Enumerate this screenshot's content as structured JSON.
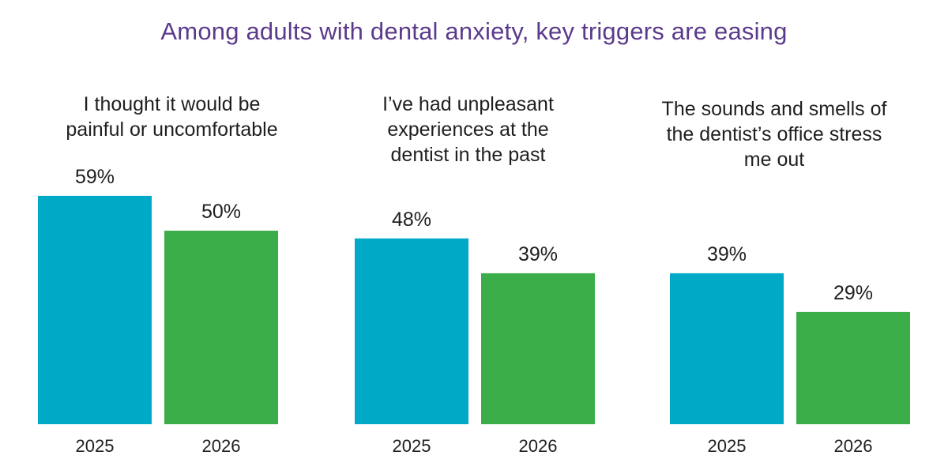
{
  "title": "Among adults with dental anxiety, key triggers are easing",
  "colors": {
    "title": "#5b3a8c",
    "2025": "#00a9c6",
    "2026": "#3bae4a",
    "text": "#1f1f1f"
  },
  "chart_data": {
    "type": "bar",
    "title": "Among adults with dental anxiety, key triggers are easing",
    "ylim": [
      0,
      65
    ],
    "grid": false,
    "legend": "none",
    "categories": [
      "2025",
      "2026"
    ],
    "panels": [
      {
        "label": "I thought it would be painful or uncomfortable",
        "label_lines": [
          "I thought it would be",
          "painful or uncomfortable"
        ],
        "values": [
          59,
          50
        ],
        "value_labels": [
          "59%",
          "50%"
        ]
      },
      {
        "label": "I’ve had unpleasant experiences at the dentist in the past",
        "label_lines": [
          "I’ve had unpleasant",
          "experiences at the",
          "dentist in the past"
        ],
        "values": [
          48,
          39
        ],
        "value_labels": [
          "48%",
          "39%"
        ]
      },
      {
        "label": "The sounds and smells of the dentist’s office stress me out",
        "label_lines": [
          "The sounds and smells of",
          "the dentist’s office stress",
          "me out"
        ],
        "values": [
          39,
          29
        ],
        "value_labels": [
          "39%",
          "29%"
        ]
      }
    ]
  }
}
